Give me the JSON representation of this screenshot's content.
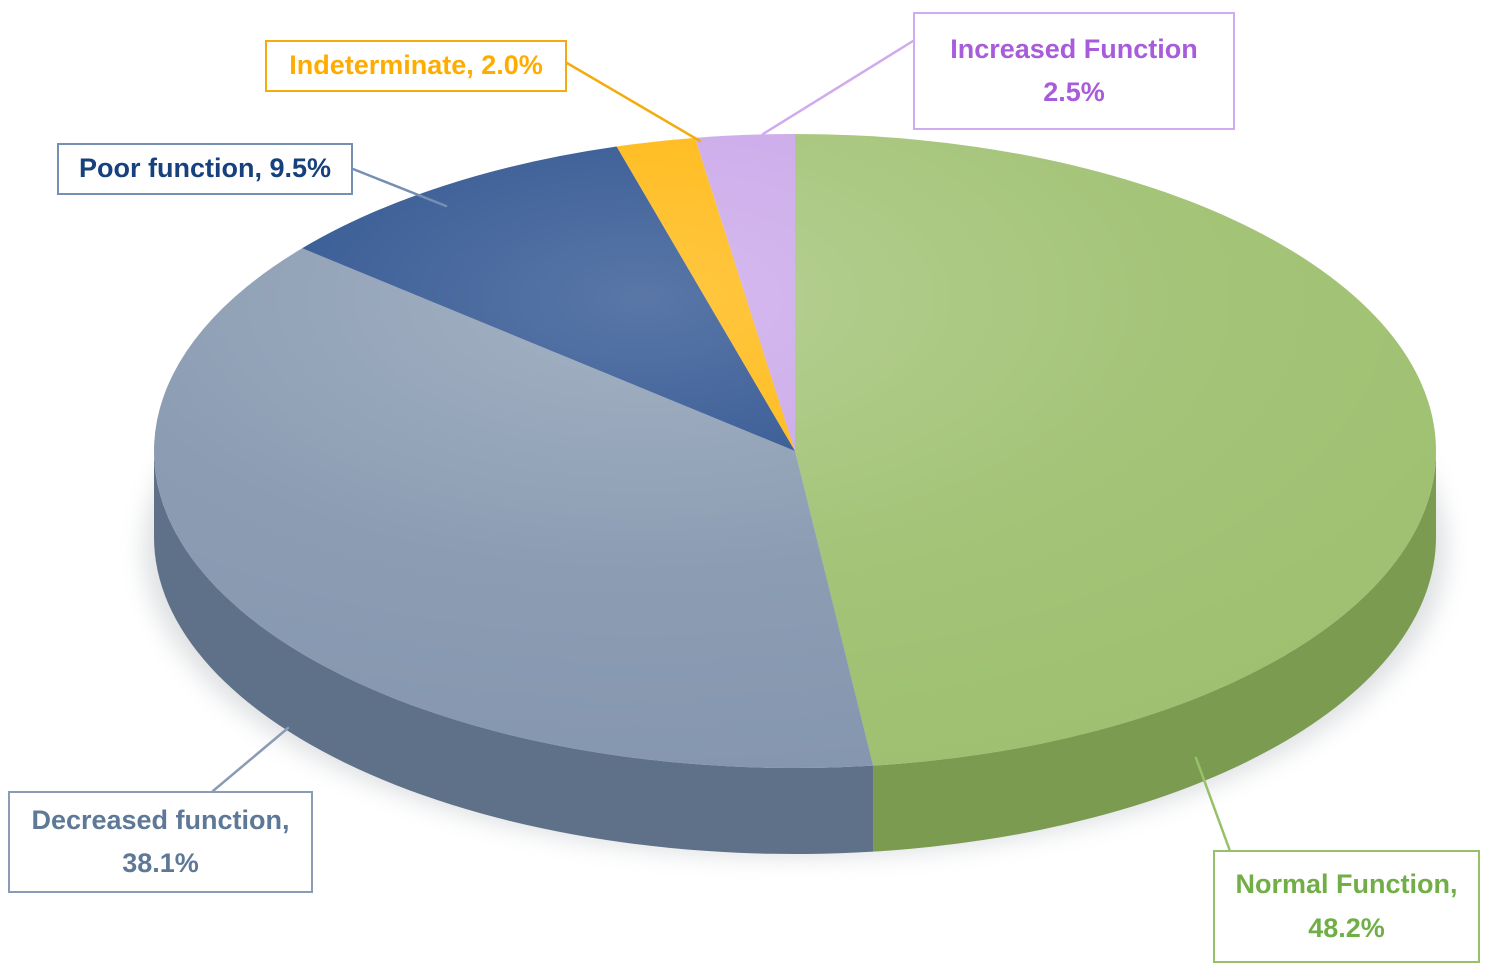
{
  "chart_data": {
    "type": "pie",
    "style": "3d-pie-with-callouts",
    "title": "",
    "unit": "%",
    "start_angle_deg": 0,
    "direction": "clockwise",
    "legend_position": "callouts",
    "slices": [
      {
        "label": "Normal Function",
        "value": 48.2,
        "color": "#9EC06F",
        "side_color": "#7A9B50"
      },
      {
        "label": "Decreased function",
        "value": 38.1,
        "color": "#8496AE",
        "side_color": "#5E7189"
      },
      {
        "label": "Poor function",
        "value": 9.5,
        "color": "#1F4788",
        "side_color": "#163563"
      },
      {
        "label": "Indeterminate",
        "value": 2.0,
        "color": "#FFB300",
        "side_color": "#C68A00"
      },
      {
        "label": "Increased Function",
        "value": 2.5,
        "color": "#C7A2E8",
        "side_color": "#A37FC2"
      }
    ]
  },
  "callouts": {
    "increased": {
      "line1": "Increased Function",
      "line2": "2.5%",
      "text_color": "#A85CDB",
      "border_color": "#D0ABEE"
    },
    "indeterminate": {
      "line1": "Indeterminate, 2.0%",
      "text_color": "#FFAC00",
      "border_color": "#F2AC0E"
    },
    "poor": {
      "line1": "Poor function, 9.5%",
      "text_color": "#16407E",
      "border_color": "#7590B3"
    },
    "decreased": {
      "line1": "Decreased function,",
      "line2": "38.1%",
      "text_color": "#5E7897",
      "border_color": "#8A9CB5"
    },
    "normal": {
      "line1": "Normal Function,",
      "line2": "48.2%",
      "text_color": "#71AE47",
      "border_color": "#97C169"
    }
  }
}
